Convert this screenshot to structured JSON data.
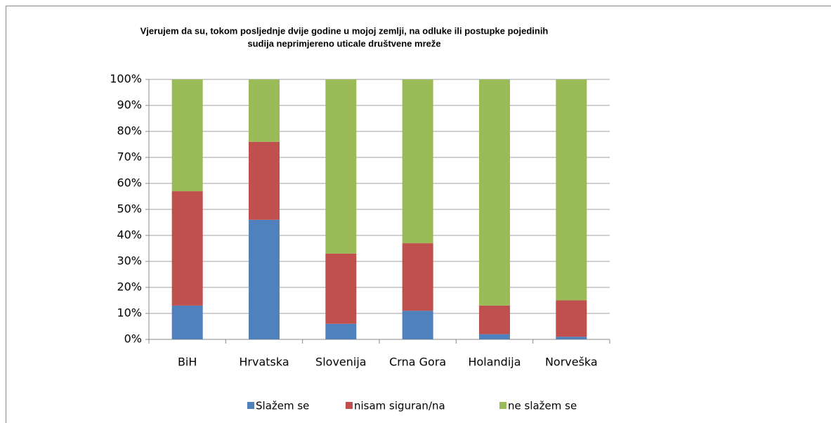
{
  "chart_data": {
    "type": "stacked_bar",
    "title": [
      "Vjerujem da su, tokom posljednje dvije godine u mojoj zemlji, na odluke ili postupke pojedinih",
      "sudija neprimjereno uticale društvene mreže"
    ],
    "categories": [
      "BiH",
      "Hrvatska",
      "Slovenija",
      "Crna Gora",
      "Holandija",
      "Norveška"
    ],
    "series": [
      {
        "name": "Slažem se",
        "color": "#4f81bd",
        "values": [
          13,
          46,
          6,
          11,
          2,
          1
        ]
      },
      {
        "name": "nisam siguran/na",
        "color": "#c0504d",
        "values": [
          44,
          30,
          27,
          26,
          11,
          14
        ]
      },
      {
        "name": "ne slažem se",
        "color": "#9bbb59",
        "values": [
          43,
          24,
          67,
          63,
          87,
          85
        ]
      }
    ],
    "ylim": [
      0,
      100
    ],
    "yticks": [
      {
        "value": 0,
        "label": "0%"
      },
      {
        "value": 10,
        "label": "10%"
      },
      {
        "value": 20,
        "label": "20%"
      },
      {
        "value": 30,
        "label": "30%"
      },
      {
        "value": 40,
        "label": "40%"
      },
      {
        "value": 50,
        "label": "50%"
      },
      {
        "value": 60,
        "label": "60%"
      },
      {
        "value": 70,
        "label": "70%"
      },
      {
        "value": 80,
        "label": "80%"
      },
      {
        "value": 90,
        "label": "90%"
      },
      {
        "value": 100,
        "label": "100%"
      }
    ],
    "grid": true,
    "legend": "bottom"
  }
}
